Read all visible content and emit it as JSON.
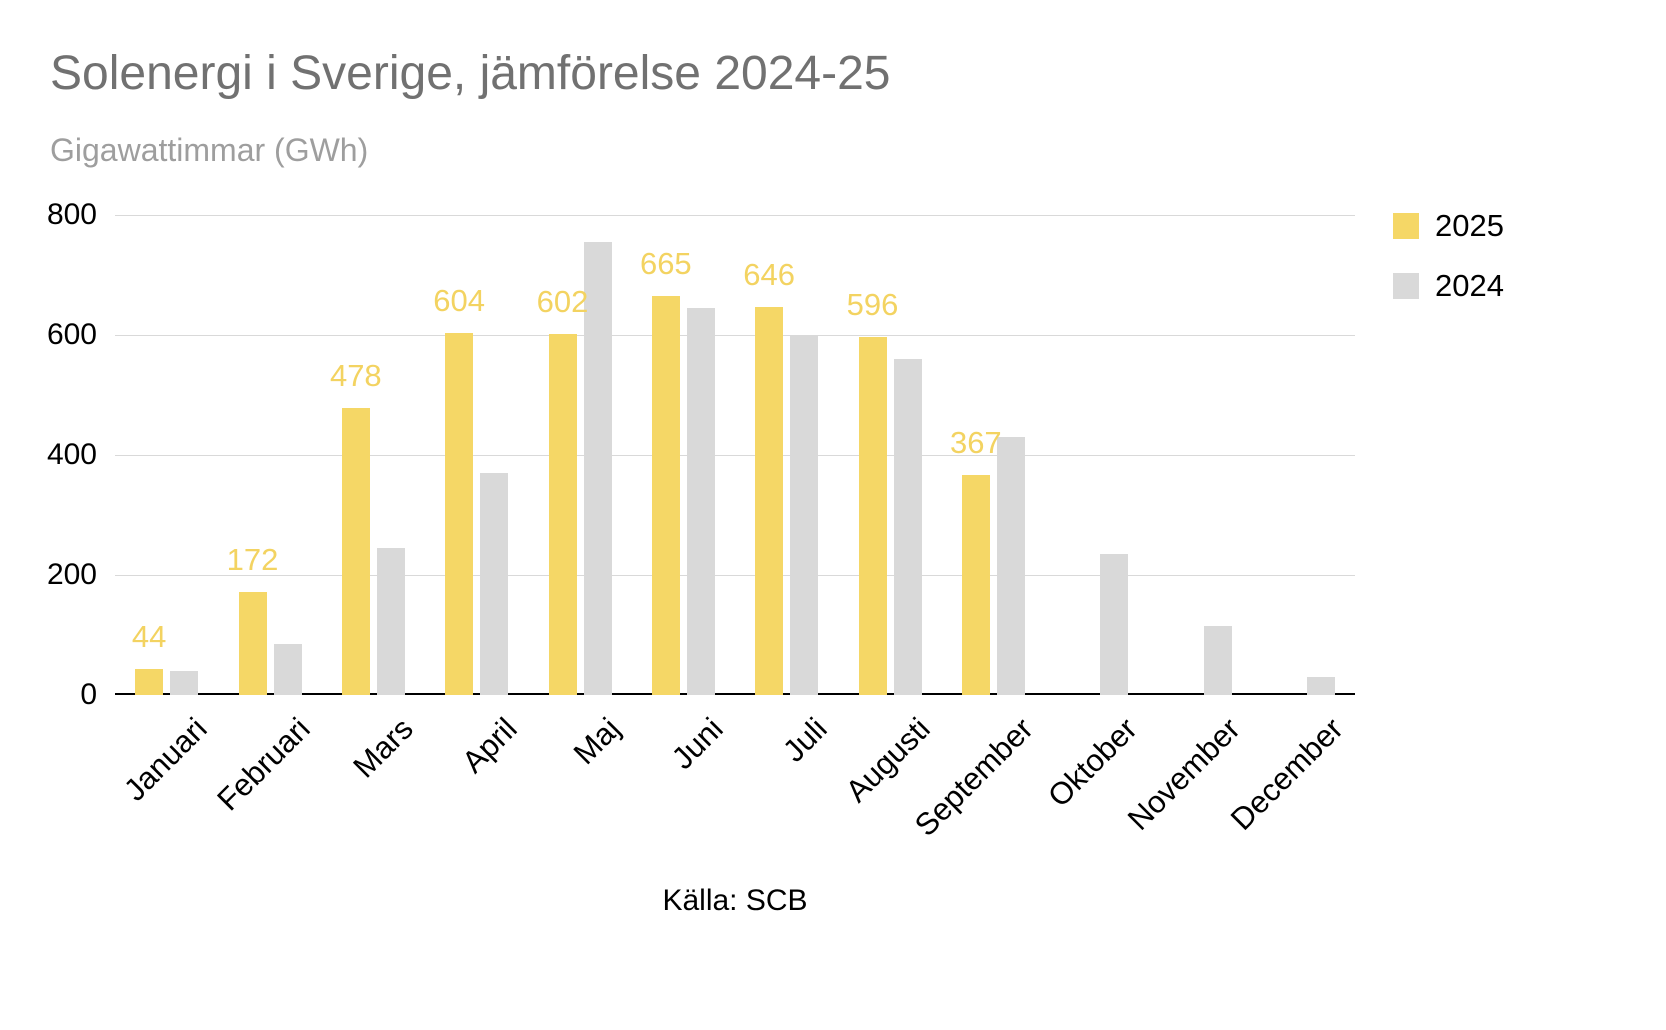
{
  "title": "Solenergi i Sverige, jämförelse 2024-25",
  "subtitle": "Gigawattimmar (GWh)",
  "source": "Källa: SCB",
  "colors": {
    "series_2025": "#f5d766",
    "series_2024": "#d9d9d9",
    "title_text": "#717171",
    "subtitle_text": "#9e9e9e",
    "gridline": "#d9d9d9",
    "axis_line": "#000000",
    "data_label": "#f3d361"
  },
  "chart_data": {
    "type": "bar",
    "title": "Solenergi i Sverige, jämförelse 2024-25",
    "subtitle": "Gigawattimmar (GWh)",
    "xlabel": "",
    "ylabel": "Gigawattimmar (GWh)",
    "categories": [
      "Januari",
      "Februari",
      "Mars",
      "April",
      "Maj",
      "Juni",
      "Juli",
      "Augusti",
      "September",
      "Oktober",
      "November",
      "December"
    ],
    "series": [
      {
        "name": "2025",
        "color": "#f5d766",
        "values": [
          44,
          172,
          478,
          604,
          602,
          665,
          646,
          596,
          367,
          null,
          null,
          null
        ],
        "labels": [
          "44",
          "172",
          "478",
          "604",
          "602",
          "665",
          "646",
          "596",
          "367",
          "",
          "",
          ""
        ]
      },
      {
        "name": "2024",
        "color": "#d9d9d9",
        "values": [
          40,
          85,
          245,
          370,
          755,
          645,
          600,
          560,
          430,
          235,
          115,
          30
        ],
        "labels": [
          "",
          "",
          "",
          "",
          "",
          "",
          "",
          "",
          "",
          "",
          "",
          ""
        ]
      }
    ],
    "yticks": [
      0,
      200,
      400,
      600,
      800
    ],
    "ylim": [
      0,
      800
    ],
    "grid": true,
    "legend_position": "top-right",
    "annotations": "Källa: SCB"
  }
}
